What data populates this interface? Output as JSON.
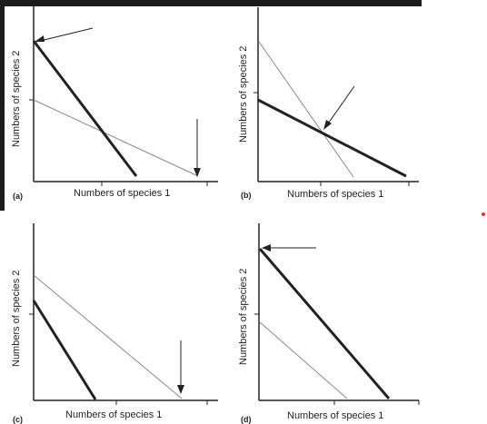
{
  "figure": {
    "panels": [
      {
        "letter": "(a)",
        "xlabel": "Numbers of species 1",
        "ylabel": "Numbers of species 2"
      },
      {
        "letter": "(b)",
        "xlabel": "Numbers of species 1",
        "ylabel": "Numbers of species 2"
      },
      {
        "letter": "(c)",
        "xlabel": "Numbers of species 1",
        "ylabel": "Numbers of species 2"
      },
      {
        "letter": "(d)",
        "xlabel": "Numbers of species 1",
        "ylabel": "Numbers of species 2"
      }
    ]
  },
  "colors": {
    "ink": "#222222",
    "thin_line": "#888888",
    "marker": "#e5322d"
  }
}
